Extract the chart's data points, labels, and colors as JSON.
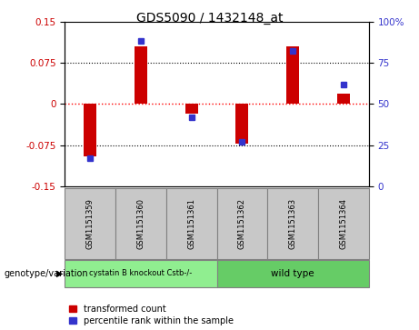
{
  "title": "GDS5090 / 1432148_at",
  "samples": [
    "GSM1151359",
    "GSM1151360",
    "GSM1151361",
    "GSM1151362",
    "GSM1151363",
    "GSM1151364"
  ],
  "red_values": [
    -0.095,
    0.105,
    -0.018,
    -0.072,
    0.105,
    0.018
  ],
  "blue_values": [
    17,
    88,
    42,
    27,
    82,
    62
  ],
  "ylim_left": [
    -0.15,
    0.15
  ],
  "ylim_right": [
    0,
    100
  ],
  "yticks_left": [
    -0.15,
    -0.075,
    0,
    0.075,
    0.15
  ],
  "yticks_right": [
    0,
    25,
    50,
    75,
    100
  ],
  "red_color": "#CC0000",
  "blue_color": "#3333CC",
  "bar_width": 0.25,
  "legend_items": [
    "transformed count",
    "percentile rank within the sample"
  ],
  "genotype_label": "genotype/variation",
  "group1_label": "cystatin B knockout Cstb-/-",
  "group2_label": "wild type",
  "group1_color": "#90EE90",
  "group2_color": "#66CC66",
  "sample_box_color": "#C8C8C8",
  "title_fontsize": 10,
  "tick_fontsize": 7.5,
  "legend_fontsize": 7
}
